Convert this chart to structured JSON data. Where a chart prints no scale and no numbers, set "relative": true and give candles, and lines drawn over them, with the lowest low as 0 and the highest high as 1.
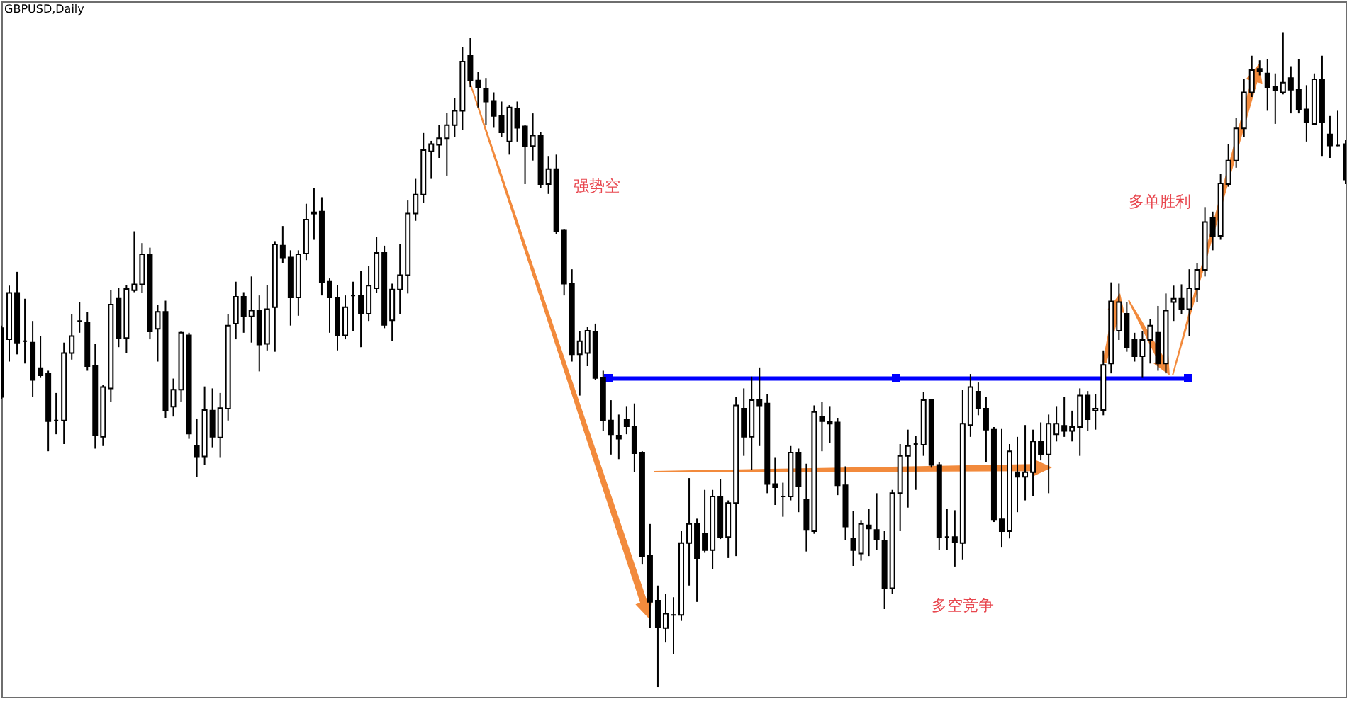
{
  "chart_data": {
    "type": "candlestick",
    "title": "GBPUSD,Daily",
    "relative": true,
    "categories": [
      null,
      null,
      null,
      null,
      null,
      null,
      null,
      null,
      null,
      null,
      null,
      null,
      null,
      null,
      null,
      null,
      null,
      null,
      null,
      null,
      null,
      null,
      null,
      null,
      null,
      null,
      null,
      null,
      null,
      null,
      null,
      null,
      null,
      null,
      null,
      null,
      null,
      null,
      null,
      null,
      null,
      null,
      null,
      null,
      null,
      null,
      null,
      null,
      null,
      null,
      null,
      null,
      null,
      null,
      null,
      null,
      null,
      null,
      null,
      null,
      null,
      null,
      null,
      null,
      null,
      null,
      null,
      null,
      null,
      null,
      null,
      null,
      null,
      null,
      null,
      null,
      null,
      null,
      null,
      null,
      null,
      null,
      null,
      null,
      null,
      null,
      null,
      null,
      null,
      null,
      null,
      null,
      null,
      null,
      null,
      null,
      null,
      null,
      null,
      null,
      null,
      null,
      null,
      null,
      null,
      null,
      null,
      null,
      null,
      null,
      null,
      null,
      null,
      null,
      null,
      null,
      null,
      null,
      null,
      null,
      null,
      null,
      null,
      null,
      null,
      null,
      null,
      null,
      null,
      null,
      null,
      null,
      null,
      null,
      null,
      null,
      null,
      null,
      null,
      null,
      null,
      null,
      null,
      null,
      null,
      null,
      null,
      null,
      null,
      null,
      null,
      null,
      null,
      null,
      null,
      null,
      null,
      null,
      null,
      null,
      null,
      null,
      null,
      null,
      null,
      null,
      null,
      null,
      null,
      null,
      null,
      null,
      null
    ],
    "ohlc": [
      [
        0.548,
        0.552,
        0.44,
        0.443
      ],
      [
        0.531,
        0.613,
        0.497,
        0.602
      ],
      [
        0.602,
        0.634,
        0.508,
        0.526
      ],
      [
        0.528,
        0.593,
        0.494,
        0.528
      ],
      [
        0.526,
        0.559,
        0.443,
        0.469
      ],
      [
        0.487,
        0.536,
        0.472,
        0.476
      ],
      [
        0.478,
        0.483,
        0.36,
        0.406
      ],
      [
        0.407,
        0.449,
        0.386,
        0.407
      ],
      [
        0.407,
        0.526,
        0.371,
        0.51
      ],
      [
        0.51,
        0.57,
        0.5,
        0.536
      ],
      [
        0.559,
        0.588,
        0.541,
        0.559
      ],
      [
        0.557,
        0.573,
        0.483,
        0.49
      ],
      [
        0.49,
        0.524,
        0.364,
        0.384
      ],
      [
        0.382,
        0.461,
        0.368,
        0.458
      ],
      [
        0.456,
        0.606,
        0.435,
        0.584
      ],
      [
        0.593,
        0.609,
        0.519,
        0.533
      ],
      [
        0.533,
        0.614,
        0.51,
        0.608
      ],
      [
        0.606,
        0.696,
        0.603,
        0.615
      ],
      [
        0.615,
        0.678,
        0.602,
        0.661
      ],
      [
        0.661,
        0.671,
        0.531,
        0.543
      ],
      [
        0.547,
        0.584,
        0.497,
        0.573
      ],
      [
        0.573,
        0.59,
        0.411,
        0.423
      ],
      [
        0.428,
        0.471,
        0.413,
        0.454
      ],
      [
        0.454,
        0.544,
        0.436,
        0.541
      ],
      [
        0.537,
        0.541,
        0.379,
        0.387
      ],
      [
        0.368,
        0.41,
        0.321,
        0.352
      ],
      [
        0.352,
        0.459,
        0.339,
        0.423
      ],
      [
        0.422,
        0.456,
        0.366,
        0.382
      ],
      [
        0.381,
        0.449,
        0.351,
        0.426
      ],
      [
        0.425,
        0.57,
        0.407,
        0.552
      ],
      [
        0.555,
        0.619,
        0.531,
        0.596
      ],
      [
        0.596,
        0.603,
        0.541,
        0.566
      ],
      [
        0.566,
        0.627,
        0.526,
        0.575
      ],
      [
        0.575,
        0.598,
        0.482,
        0.523
      ],
      [
        0.524,
        0.614,
        0.514,
        0.577
      ],
      [
        0.58,
        0.681,
        0.512,
        0.676
      ],
      [
        0.674,
        0.704,
        0.647,
        0.656
      ],
      [
        0.656,
        0.667,
        0.552,
        0.595
      ],
      [
        0.595,
        0.667,
        0.567,
        0.661
      ],
      [
        0.662,
        0.738,
        0.652,
        0.714
      ],
      [
        0.725,
        0.762,
        0.683,
        0.723
      ],
      [
        0.726,
        0.748,
        0.598,
        0.618
      ],
      [
        0.619,
        0.624,
        0.541,
        0.595
      ],
      [
        0.595,
        0.614,
        0.514,
        0.537
      ],
      [
        0.537,
        0.598,
        0.531,
        0.58
      ],
      [
        0.598,
        0.619,
        0.544,
        0.598
      ],
      [
        0.598,
        0.636,
        0.519,
        0.57
      ],
      [
        0.57,
        0.643,
        0.559,
        0.613
      ],
      [
        0.609,
        0.687,
        0.602,
        0.663
      ],
      [
        0.663,
        0.674,
        0.548,
        0.553
      ],
      [
        0.56,
        0.616,
        0.528,
        0.607
      ],
      [
        0.607,
        0.676,
        0.57,
        0.629
      ],
      [
        0.629,
        0.743,
        0.601,
        0.723
      ],
      [
        0.723,
        0.776,
        0.712,
        0.752
      ],
      [
        0.752,
        0.846,
        0.739,
        0.82
      ],
      [
        0.818,
        0.834,
        0.776,
        0.829
      ],
      [
        0.828,
        0.858,
        0.808,
        0.838
      ],
      [
        0.838,
        0.877,
        0.781,
        0.858
      ],
      [
        0.858,
        0.899,
        0.84,
        0.88
      ],
      [
        0.88,
        0.977,
        0.851,
        0.955
      ],
      [
        0.964,
        0.991,
        0.916,
        0.926
      ],
      [
        0.926,
        0.939,
        0.885,
        0.916
      ],
      [
        0.914,
        0.93,
        0.858,
        0.894
      ],
      [
        0.895,
        0.908,
        0.854,
        0.872
      ],
      [
        0.872,
        0.894,
        0.84,
        0.847
      ],
      [
        0.833,
        0.889,
        0.813,
        0.885
      ],
      [
        0.883,
        0.894,
        0.833,
        0.854
      ],
      [
        0.856,
        0.858,
        0.768,
        0.826
      ],
      [
        0.826,
        0.876,
        0.804,
        0.842
      ],
      [
        0.842,
        0.847,
        0.762,
        0.768
      ],
      [
        0.768,
        0.811,
        0.753,
        0.791
      ],
      [
        0.791,
        0.813,
        0.692,
        0.696
      ],
      [
        0.697,
        0.699,
        0.598,
        0.616
      ],
      [
        0.616,
        0.638,
        0.497,
        0.508
      ],
      [
        0.508,
        0.544,
        0.445,
        0.528
      ],
      [
        0.51,
        0.55,
        0.49,
        0.544
      ],
      [
        0.543,
        0.555,
        0.469,
        0.472
      ],
      [
        0.472,
        0.483,
        0.391,
        0.407
      ],
      [
        0.407,
        0.438,
        0.355,
        0.386
      ],
      [
        0.384,
        0.416,
        0.348,
        0.379
      ],
      [
        0.409,
        0.429,
        0.386,
        0.398
      ],
      [
        0.398,
        0.433,
        0.328,
        0.357
      ],
      [
        0.358,
        0.36,
        0.187,
        0.2
      ],
      [
        0.2,
        0.249,
        0.09,
        0.13
      ],
      [
        0.132,
        0.155,
        0,
        0.092
      ],
      [
        0.09,
        0.142,
        0.068,
        0.112
      ],
      [
        0.11,
        0.137,
        0.05,
        0.11
      ],
      [
        0.11,
        0.238,
        0.101,
        0.22
      ],
      [
        0.22,
        0.319,
        0.155,
        0.249
      ],
      [
        0.249,
        0.257,
        0.13,
        0.197
      ],
      [
        0.234,
        0.301,
        0.205,
        0.209
      ],
      [
        0.209,
        0.301,
        0.18,
        0.291
      ],
      [
        0.291,
        0.317,
        0.226,
        0.229
      ],
      [
        0.229,
        0.285,
        0.197,
        0.281
      ],
      [
        0.281,
        0.443,
        0.2,
        0.43
      ],
      [
        0.425,
        0.456,
        0.353,
        0.382
      ],
      [
        0.382,
        0.474,
        0.332,
        0.438
      ],
      [
        0.438,
        0.488,
        0.368,
        0.43
      ],
      [
        0.433,
        0.447,
        0.296,
        0.31
      ],
      [
        0.31,
        0.351,
        0.278,
        0.305
      ],
      [
        0.291,
        0.312,
        0.26,
        0.291
      ],
      [
        0.291,
        0.368,
        0.285,
        0.358
      ],
      [
        0.358,
        0.364,
        0.267,
        0.306
      ],
      [
        0.286,
        0.341,
        0.207,
        0.24
      ],
      [
        0.238,
        0.43,
        0.234,
        0.42
      ],
      [
        0.413,
        0.435,
        0.36,
        0.406
      ],
      [
        0.405,
        0.429,
        0.373,
        0.402
      ],
      [
        0.404,
        0.411,
        0.293,
        0.308
      ],
      [
        0.308,
        0.337,
        0.224,
        0.245
      ],
      [
        0.227,
        0.269,
        0.185,
        0.209
      ],
      [
        0.204,
        0.255,
        0.193,
        0.249
      ],
      [
        0.247,
        0.272,
        0.2,
        0.242
      ],
      [
        0.24,
        0.296,
        0.209,
        0.226
      ],
      [
        0.224,
        0.238,
        0.119,
        0.151
      ],
      [
        0.151,
        0.301,
        0.142,
        0.296
      ],
      [
        0.296,
        0.371,
        0.238,
        0.353
      ],
      [
        0.353,
        0.393,
        0.274,
        0.368
      ],
      [
        0.371,
        0.384,
        0.301,
        0.371
      ],
      [
        0.37,
        0.451,
        0.353,
        0.438
      ],
      [
        0.438,
        0.44,
        0.335,
        0.339
      ],
      [
        0.339,
        0.344,
        0.209,
        0.229
      ],
      [
        0.229,
        0.272,
        0.209,
        0.229
      ],
      [
        0.229,
        0.27,
        0.184,
        0.221
      ],
      [
        0.22,
        0.454,
        0.195,
        0.402
      ],
      [
        0.4,
        0.478,
        0.382,
        0.458
      ],
      [
        0.451,
        0.465,
        0.415,
        0.425
      ],
      [
        0.425,
        0.443,
        0.344,
        0.393
      ],
      [
        0.393,
        0.397,
        0.252,
        0.256
      ],
      [
        0.256,
        0.394,
        0.213,
        0.238
      ],
      [
        0.238,
        0.371,
        0.227,
        0.36
      ],
      [
        0.328,
        0.382,
        0.267,
        0.321
      ],
      [
        0.321,
        0.4,
        0.285,
        0.328
      ],
      [
        0.328,
        0.393,
        0.292,
        0.375
      ],
      [
        0.375,
        0.404,
        0.346,
        0.355
      ],
      [
        0.355,
        0.416,
        0.296,
        0.402
      ],
      [
        0.386,
        0.429,
        0.375,
        0.402
      ],
      [
        0.399,
        0.443,
        0.382,
        0.391
      ],
      [
        0.391,
        0.422,
        0.375,
        0.397
      ],
      [
        0.397,
        0.456,
        0.353,
        0.445
      ],
      [
        0.445,
        0.452,
        0.391,
        0.409
      ],
      [
        0.422,
        0.447,
        0.393,
        0.425
      ],
      [
        0.423,
        0.514,
        0.415,
        0.492
      ],
      [
        0.494,
        0.618,
        0.479,
        0.589
      ],
      [
        0.544,
        0.616,
        0.53,
        0.588
      ],
      [
        0.57,
        0.588,
        0.512,
        0.519
      ],
      [
        0.53,
        0.541,
        0.497,
        0.505
      ],
      [
        0.505,
        0.544,
        0.472,
        0.53
      ],
      [
        0.53,
        0.562,
        0.494,
        0.552
      ],
      [
        0.541,
        0.582,
        0.483,
        0.494
      ],
      [
        0.494,
        0.601,
        0.479,
        0.575
      ],
      [
        0.588,
        0.613,
        0.559,
        0.593
      ],
      [
        0.593,
        0.615,
        0.57,
        0.577
      ],
      [
        0.577,
        0.638,
        0.536,
        0.609
      ],
      [
        0.608,
        0.647,
        0.588,
        0.637
      ],
      [
        0.637,
        0.733,
        0.627,
        0.71
      ],
      [
        0.717,
        0.726,
        0.667,
        0.689
      ],
      [
        0.689,
        0.784,
        0.683,
        0.769
      ],
      [
        0.768,
        0.829,
        0.764,
        0.804
      ],
      [
        0.804,
        0.869,
        0.793,
        0.853
      ],
      [
        0.853,
        0.928,
        0.84,
        0.908
      ],
      [
        0.908,
        0.964,
        0.901,
        0.942
      ],
      [
        0.944,
        0.957,
        0.934,
        0.941
      ],
      [
        0.937,
        0.959,
        0.88,
        0.916
      ],
      [
        0.916,
        0.937,
        0.86,
        0.911
      ],
      [
        0.908,
        1,
        0.905,
        0.923
      ],
      [
        0.93,
        0.948,
        0.876,
        0.912
      ],
      [
        0.912,
        0.959,
        0.876,
        0.882
      ],
      [
        0.882,
        0.919,
        0.833,
        0.862
      ],
      [
        0.86,
        0.937,
        0.858,
        0.928
      ],
      [
        0.928,
        0.964,
        0.811,
        0.863
      ],
      [
        0.844,
        0.872,
        0.808,
        0.827
      ],
      [
        0.827,
        0.88,
        0.826,
        0.827
      ],
      [
        0.829,
        0.836,
        0.768,
        0.775
      ]
    ],
    "colors": [
      "#000000",
      "#ffffff",
      "#000000",
      "#000000",
      "#000000",
      "#000000",
      "#000000",
      "#000000",
      "#ffffff",
      "#ffffff",
      "#000000",
      "#000000",
      "#000000",
      "#ffffff",
      "#ffffff",
      "#000000",
      "#ffffff",
      "#ffffff",
      "#ffffff",
      "#000000",
      "#ffffff",
      "#000000",
      "#ffffff",
      "#ffffff",
      "#000000",
      "#000000",
      "#ffffff",
      "#000000",
      "#ffffff",
      "#ffffff",
      "#ffffff",
      "#000000",
      "#ffffff",
      "#000000",
      "#ffffff",
      "#ffffff",
      "#000000",
      "#000000",
      "#ffffff",
      "#ffffff",
      "#000000",
      "#000000",
      "#000000",
      "#000000",
      "#ffffff",
      "#000000",
      "#000000",
      "#ffffff",
      "#ffffff",
      "#000000",
      "#ffffff",
      "#ffffff",
      "#ffffff",
      "#ffffff",
      "#ffffff",
      "#ffffff",
      "#ffffff",
      "#ffffff",
      "#ffffff",
      "#ffffff",
      "#000000",
      "#000000",
      "#000000",
      "#000000",
      "#000000",
      "#ffffff",
      "#000000",
      "#000000",
      "#ffffff",
      "#000000",
      "#ffffff",
      "#000000",
      "#000000",
      "#000000",
      "#ffffff",
      "#ffffff",
      "#000000",
      "#000000",
      "#000000",
      "#000000",
      "#000000",
      "#000000",
      "#000000",
      "#000000",
      "#000000",
      "#ffffff",
      "#000000",
      "#ffffff",
      "#ffffff",
      "#000000",
      "#000000",
      "#ffffff",
      "#000000",
      "#ffffff",
      "#ffffff",
      "#000000",
      "#ffffff",
      "#000000",
      "#000000",
      "#000000",
      "#000000",
      "#ffffff",
      "#000000",
      "#000000",
      "#ffffff",
      "#000000",
      "#000000",
      "#000000",
      "#000000",
      "#000000",
      "#ffffff",
      "#000000",
      "#000000",
      "#000000",
      "#ffffff",
      "#ffffff",
      "#ffffff",
      "#000000",
      "#ffffff",
      "#000000",
      "#000000",
      "#000000",
      "#000000",
      "#ffffff",
      "#ffffff",
      "#000000",
      "#000000",
      "#000000",
      "#000000",
      "#ffffff",
      "#000000",
      "#ffffff",
      "#ffffff",
      "#000000",
      "#ffffff",
      "#ffffff",
      "#000000",
      "#ffffff",
      "#ffffff",
      "#000000",
      "#ffffff",
      "#ffffff",
      "#ffffff",
      "#ffffff",
      "#000000",
      "#000000",
      "#ffffff",
      "#ffffff",
      "#000000",
      "#ffffff",
      "#ffffff",
      "#000000",
      "#ffffff",
      "#ffffff",
      "#ffffff",
      "#000000",
      "#ffffff",
      "#ffffff",
      "#ffffff",
      "#ffffff",
      "#ffffff",
      "#000000",
      "#000000",
      "#000000",
      "#ffffff",
      "#000000",
      "#000000",
      "#000000",
      "#ffffff",
      "#000000",
      "#000000",
      "#000000",
      "#000000"
    ],
    "series": [
      {
        "type": "line",
        "color": "#0000ff",
        "values": [
          null,
          null,
          null,
          null,
          null,
          null,
          null,
          null,
          null,
          null,
          null,
          null,
          null,
          null,
          null,
          null,
          null,
          null,
          null,
          null,
          null,
          null,
          null,
          null,
          null,
          null,
          null,
          null,
          null,
          null,
          null,
          null,
          null,
          null,
          null,
          null,
          null,
          null,
          null,
          null,
          null,
          null,
          null,
          null,
          null,
          null,
          null,
          null,
          null,
          null,
          null,
          null,
          null,
          null,
          null,
          null,
          null,
          null,
          null,
          null,
          null,
          null,
          null,
          null,
          null,
          null,
          null,
          null,
          null,
          null,
          null,
          null,
          null,
          null,
          null,
          null,
          null,
          null,
          0.471,
          0.471,
          0.471,
          0.471,
          0.471,
          0.471,
          0.471,
          0.471,
          0.471,
          0.471,
          0.471,
          0.471,
          0.471,
          0.471,
          0.471,
          0.471,
          0.471,
          0.471,
          0.471,
          0.471,
          0.471,
          0.471,
          0.471,
          0.471,
          0.471,
          0.471,
          0.471,
          0.471,
          0.471,
          0.471,
          0.471,
          0.471,
          0.471,
          0.471,
          0.471,
          0.471,
          0.471,
          0.471,
          0.471,
          0.471,
          0.471,
          0.471,
          0.471,
          0.471,
          0.471,
          0.471,
          0.471,
          0.471,
          0.471,
          0.471,
          0.471,
          0.471,
          0.471,
          0.471,
          0.471,
          0.471,
          0.471,
          0.471,
          0.471,
          0.471,
          0.471,
          0.471,
          0.471,
          0.471,
          0.471,
          0.471,
          0.471,
          0.471,
          0.471,
          0.471,
          0.471,
          0.471,
          0.471,
          0.471,
          0.471,
          null,
          null,
          null,
          null,
          null,
          null,
          null,
          null,
          null,
          null,
          null,
          null,
          null,
          null,
          null,
          null,
          null,
          null,
          null,
          null
        ]
      }
    ],
    "annotations": [
      "强势空",
      "多单胜利",
      "多空竞争"
    ]
  }
}
